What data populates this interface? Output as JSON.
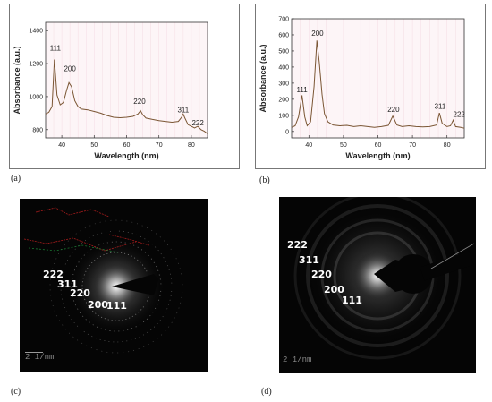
{
  "chart_data": [
    {
      "type": "line",
      "xlabel": "Wavelength (nm)",
      "ylabel": "Absorbance (a.u.)",
      "xlim": [
        35,
        85
      ],
      "ylim": [
        750,
        1450
      ],
      "xticks": [
        40,
        50,
        60,
        70,
        80
      ],
      "yticks": [
        800,
        1000,
        1200,
        1400
      ],
      "x": [
        35,
        36,
        37,
        37.7,
        38.5,
        39.5,
        40.5,
        41.5,
        42.2,
        43,
        44,
        45,
        46,
        48,
        50,
        52,
        54,
        56,
        58,
        60,
        62,
        63.5,
        64.3,
        65,
        66,
        68,
        70,
        72,
        74,
        76,
        77,
        77.5,
        78,
        79,
        80,
        81,
        82,
        83,
        84,
        85
      ],
      "y": [
        895,
        905,
        940,
        1225,
        1010,
        950,
        965,
        1040,
        1085,
        1060,
        975,
        940,
        925,
        920,
        910,
        900,
        885,
        875,
        872,
        875,
        880,
        895,
        915,
        890,
        870,
        862,
        855,
        850,
        845,
        850,
        875,
        895,
        870,
        830,
        820,
        810,
        820,
        800,
        790,
        775
      ],
      "peak_labels": [
        {
          "text": "111",
          "x": 38,
          "y": 1280
        },
        {
          "text": "200",
          "x": 42.5,
          "y": 1155
        },
        {
          "text": "220",
          "x": 64,
          "y": 955
        },
        {
          "text": "311",
          "x": 77.5,
          "y": 905
        },
        {
          "text": "222",
          "x": 82,
          "y": 825
        }
      ],
      "grid": false
    },
    {
      "type": "line",
      "xlabel": "Wavelength (nm)",
      "ylabel": "Absorbance (a.u.)",
      "xlim": [
        35,
        85
      ],
      "ylim": [
        -40,
        700
      ],
      "xticks": [
        40,
        50,
        60,
        70,
        80
      ],
      "yticks": [
        0,
        100,
        200,
        300,
        400,
        500,
        600,
        700
      ],
      "x": [
        35,
        36,
        37,
        38,
        38.8,
        39.5,
        40.5,
        41.5,
        42.3,
        43,
        43.8,
        44.5,
        45.5,
        47,
        49,
        51,
        53,
        55,
        57,
        59,
        61,
        63,
        64.3,
        65.5,
        67,
        69,
        71,
        73,
        75,
        77,
        77.8,
        78.6,
        80,
        81,
        81.8,
        82.5,
        84,
        85
      ],
      "y": [
        25,
        35,
        90,
        225,
        90,
        35,
        60,
        280,
        565,
        430,
        230,
        110,
        60,
        40,
        35,
        38,
        30,
        35,
        30,
        25,
        30,
        38,
        95,
        40,
        30,
        35,
        30,
        28,
        30,
        40,
        115,
        50,
        30,
        35,
        70,
        30,
        25,
        20
      ],
      "peak_labels": [
        {
          "text": "111",
          "x": 38,
          "y": 245
        },
        {
          "text": "200",
          "x": 42.5,
          "y": 595
        },
        {
          "text": "220",
          "x": 64.5,
          "y": 120
        },
        {
          "text": "311",
          "x": 78,
          "y": 140
        },
        {
          "text": "222",
          "x": 83.5,
          "y": 90
        }
      ],
      "grid": false
    }
  ],
  "panel_letters": {
    "a": "(a)",
    "b": "(b)",
    "c": "(c)",
    "d": "(d)"
  },
  "saed_c": {
    "ring_labels": [
      "222",
      "311",
      "220",
      "200",
      "111"
    ],
    "scale_bar": "2 1/nm"
  },
  "saed_d": {
    "ring_labels": [
      "222",
      "311",
      "220",
      "200",
      "111"
    ],
    "scale_bar": "2 1/nm"
  }
}
